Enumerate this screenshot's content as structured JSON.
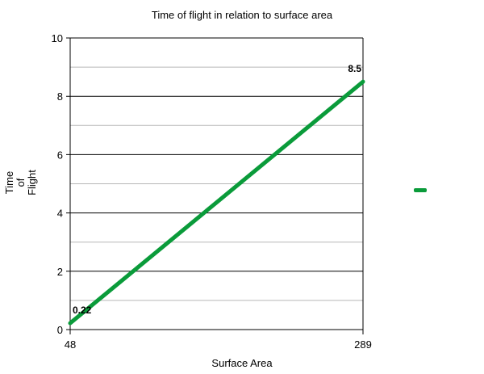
{
  "chart_data": {
    "type": "line",
    "title": "Time of flight in relation to surface area",
    "xlabel": "Surface Area",
    "ylabel": "Time of Flight",
    "ylabel_lines": [
      "Time",
      "of",
      "Flight"
    ],
    "x": [
      48,
      289
    ],
    "x_tick_labels": [
      "48",
      "289"
    ],
    "series": [
      {
        "name": "",
        "values": [
          0.22,
          8.5
        ],
        "color": "#0a9b3a",
        "data_labels": [
          "0.22",
          "8.5"
        ]
      }
    ],
    "ylim": [
      0,
      10
    ],
    "y_ticks": [
      0,
      2,
      4,
      6,
      8,
      10
    ],
    "y_tick_labels": [
      "0",
      "2",
      "4",
      "6",
      "8",
      "10"
    ],
    "grid": {
      "major": true,
      "minor": true,
      "major_color": "#000000",
      "minor_color": "#b7b7b7"
    },
    "legend": {
      "position": "right",
      "entries": [
        {
          "label": "",
          "color": "#0a9b3a"
        }
      ]
    }
  }
}
